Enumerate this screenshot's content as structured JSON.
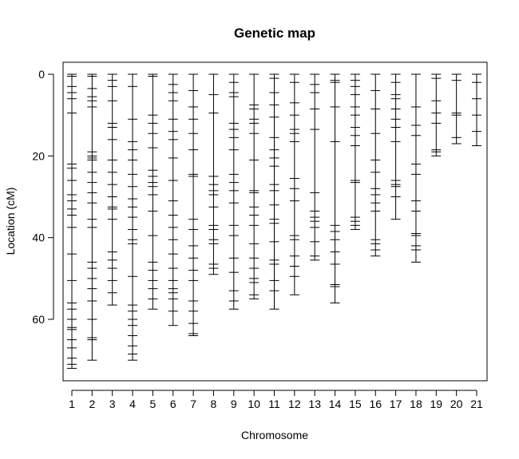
{
  "chart_data": {
    "type": "genetic-map",
    "title": "Genetic map",
    "xlabel": "Chromosome",
    "ylabel": "Location (cM)",
    "y_reversed": true,
    "ylim": [
      0,
      75
    ],
    "yticks": [
      0,
      20,
      40,
      60
    ],
    "grid": false,
    "chromosomes": [
      {
        "name": "1",
        "markers": [
          0,
          0.5,
          3,
          4.5,
          6,
          9.5,
          22,
          23,
          26,
          29.5,
          31,
          33,
          34.5,
          37.5,
          44,
          50.5,
          56,
          57.5,
          60,
          62,
          62.5,
          65,
          67,
          69.5,
          71,
          72
        ]
      },
      {
        "name": "2",
        "markers": [
          0,
          0.5,
          3.5,
          5.5,
          6.5,
          8,
          19,
          20,
          20.5,
          21,
          24,
          26.5,
          29,
          31.5,
          35.5,
          37.5,
          46,
          47.5,
          50,
          52.5,
          55.5,
          60,
          64.5,
          65,
          70
        ]
      },
      {
        "name": "3",
        "markers": [
          0,
          1.5,
          3,
          6.5,
          12,
          13,
          16,
          21,
          24,
          27,
          30,
          32.5,
          33,
          35.5,
          43.5,
          45.5,
          47.5,
          50.5,
          53.5,
          56.5
        ]
      },
      {
        "name": "4",
        "markers": [
          0,
          3,
          11,
          16.5,
          18.5,
          21,
          24.5,
          27.5,
          30.5,
          32.5,
          35,
          38,
          40.5,
          41.5,
          49.5,
          56.5,
          58,
          60,
          61.5,
          64,
          66.5,
          68.5,
          70
        ]
      },
      {
        "name": "5",
        "markers": [
          0,
          0.5,
          10,
          12,
          14.5,
          18,
          23.5,
          25,
          26.5,
          27.5,
          29.5,
          33.5,
          39.5,
          46,
          48,
          50.5,
          52.5,
          55,
          57.5
        ]
      },
      {
        "name": "6",
        "markers": [
          0,
          2.5,
          4.5,
          6.5,
          11,
          14,
          16,
          20.5,
          26,
          31,
          34.5,
          37.5,
          40.5,
          44,
          47.5,
          50.5,
          52.5,
          53.5,
          55,
          58,
          61.5
        ]
      },
      {
        "name": "7",
        "markers": [
          0,
          4,
          8,
          11,
          14.5,
          18.5,
          24.5,
          25,
          35.5,
          38,
          42,
          45,
          48,
          50.5,
          55.5,
          58,
          61,
          63.5,
          64
        ]
      },
      {
        "name": "8",
        "markers": [
          0,
          5,
          9.5,
          25,
          27,
          28.5,
          29.5,
          32.5,
          37,
          38,
          40.5,
          41.5,
          46.5,
          47.5,
          49
        ]
      },
      {
        "name": "9",
        "markers": [
          0,
          2,
          4.5,
          5.5,
          12,
          13.5,
          15.5,
          18.5,
          24.5,
          26.5,
          28.5,
          31.5,
          37,
          39.5,
          45,
          48.5,
          53,
          55.5,
          57.5
        ]
      },
      {
        "name": "10",
        "markers": [
          0,
          7.5,
          8.5,
          11,
          12,
          14.5,
          21,
          28.5,
          29,
          32.5,
          34.5,
          37,
          41.5,
          45,
          47.5,
          50,
          51,
          54,
          55
        ]
      },
      {
        "name": "11",
        "markers": [
          0,
          1,
          4.5,
          7.5,
          10.5,
          15.5,
          18.5,
          20.5,
          22.5,
          27,
          28.5,
          32,
          35.5,
          36.5,
          41,
          45.5,
          46.5,
          50.5,
          53,
          57.5
        ]
      },
      {
        "name": "12",
        "markers": [
          0,
          2,
          7,
          10,
          13.5,
          14.5,
          16.5,
          25.5,
          28,
          31,
          39.5,
          40.5,
          44.5,
          47,
          49.5,
          54
        ]
      },
      {
        "name": "13",
        "markers": [
          0,
          2.5,
          4.5,
          8.5,
          13.5,
          29,
          33.5,
          35,
          36,
          37.5,
          41,
          44.5,
          45.5
        ]
      },
      {
        "name": "14",
        "markers": [
          0,
          1.5,
          2,
          8,
          16.5,
          37,
          38.5,
          40.5,
          43.5,
          46.5,
          51.5,
          52,
          56
        ]
      },
      {
        "name": "15",
        "markers": [
          0,
          1.5,
          3,
          5,
          8,
          10,
          13,
          15,
          17.5,
          26,
          26.5,
          35,
          36,
          37,
          38
        ]
      },
      {
        "name": "16",
        "markers": [
          0,
          4,
          8.5,
          14.5,
          21,
          24,
          28,
          29.5,
          31.5,
          33.5,
          40.5,
          41.5,
          43,
          44.5
        ]
      },
      {
        "name": "17",
        "markers": [
          0,
          2,
          5,
          6,
          8.5,
          11,
          13,
          16.5,
          26,
          27,
          27.5,
          30,
          35.5
        ]
      },
      {
        "name": "18",
        "markers": [
          0,
          8,
          12.5,
          15,
          22,
          24.5,
          31,
          33.5,
          39,
          39.5,
          42,
          43,
          46
        ]
      },
      {
        "name": "19",
        "markers": [
          0,
          1,
          6.5,
          9.5,
          12,
          18.5,
          19,
          20
        ]
      },
      {
        "name": "20",
        "markers": [
          0,
          1.5,
          9.5,
          10,
          15.5,
          17
        ]
      },
      {
        "name": "21",
        "markers": [
          0,
          2,
          6,
          10,
          14,
          17.5
        ]
      }
    ]
  }
}
